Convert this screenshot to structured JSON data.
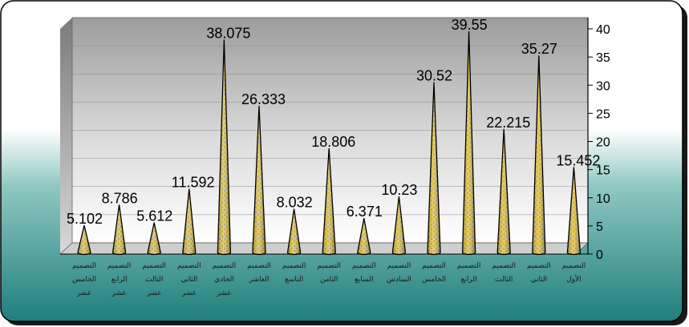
{
  "chart_data": {
    "type": "bar",
    "shape": "cone",
    "categories": [
      [
        "التصميم",
        "الخامس",
        "عشر"
      ],
      [
        "التصميم",
        "الرابع",
        "عشر"
      ],
      [
        "التصميم",
        "الثالث",
        "عشر"
      ],
      [
        "التصميم",
        "الثاني",
        "عشر"
      ],
      [
        "التصميم",
        "الحادي",
        "عشر"
      ],
      [
        "التصميم",
        "العاشر"
      ],
      [
        "التصميم",
        "التاسع"
      ],
      [
        "التصميم",
        "الثامن"
      ],
      [
        "التصميم",
        "السابع"
      ],
      [
        "التصميم",
        "السادس"
      ],
      [
        "التصميم",
        "الخامس"
      ],
      [
        "التصميم",
        "الرابع"
      ],
      [
        "التصميم",
        "الثالث"
      ],
      [
        "التصميم",
        "الثاني"
      ],
      [
        "التصميم",
        "الأول"
      ]
    ],
    "values": [
      5.102,
      8.786,
      5.612,
      11.592,
      38.075,
      26.333,
      8.032,
      18.806,
      6.371,
      10.23,
      30.52,
      39.55,
      22.215,
      35.27,
      15.452
    ],
    "value_labels": [
      "5.102",
      "8.786",
      "5.612",
      "11.592",
      "38.075",
      "26.333",
      "8.032",
      "18.806",
      "6.371",
      "10.23",
      "30.52",
      "39.55",
      "22.215",
      "35.27",
      "15.452"
    ],
    "y_ticks": [
      "0",
      "5",
      "10",
      "15",
      "20",
      "25",
      "30",
      "35",
      "40"
    ],
    "ylim": [
      0,
      40
    ],
    "y_axis_side": "right",
    "grid": true,
    "legend": "none",
    "title": "",
    "xlabel": "",
    "ylabel": "",
    "colors": {
      "cone_fill": "#e8c43a",
      "cone_pattern": "#9aa0a8",
      "cone_outline": "#000000",
      "frame_top": "#ffffff",
      "frame_bottom": "#1f7f7c",
      "frame_border": "#000000",
      "plot_wall_top": "#9c9c9c",
      "plot_wall_bottom": "#ffffff"
    }
  }
}
